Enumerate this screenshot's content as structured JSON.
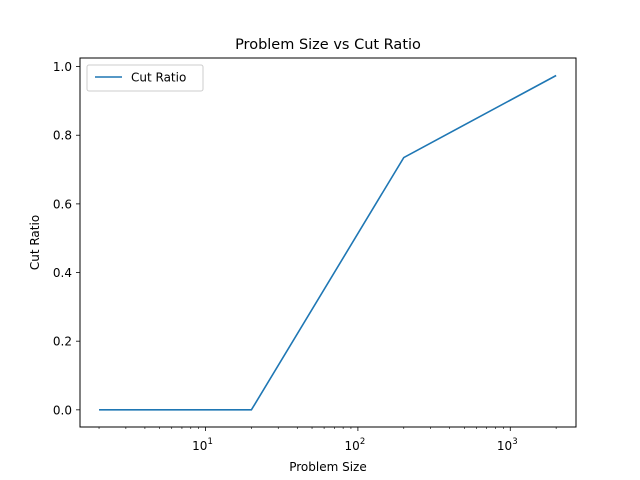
{
  "chart_data": {
    "type": "line",
    "title": "Problem Size vs Cut Ratio",
    "xlabel": "Problem Size",
    "ylabel": "Cut Ratio",
    "xscale": "log",
    "xlim": [
      1.5,
      2700
    ],
    "ylim": [
      -0.05,
      1.025
    ],
    "x_ticks": [
      {
        "value": 10,
        "base": "10",
        "exp": "1"
      },
      {
        "value": 100,
        "base": "10",
        "exp": "2"
      },
      {
        "value": 1000,
        "base": "10",
        "exp": "3"
      }
    ],
    "y_ticks": [
      "0.0",
      "0.2",
      "0.4",
      "0.6",
      "0.8",
      "1.0"
    ],
    "grid": false,
    "legend_position": "top-left",
    "series": [
      {
        "name": "Cut Ratio",
        "color": "#1f77b4",
        "x": [
          2,
          20,
          200,
          2000
        ],
        "y": [
          0.0,
          0.0,
          0.735,
          0.974
        ]
      }
    ]
  }
}
